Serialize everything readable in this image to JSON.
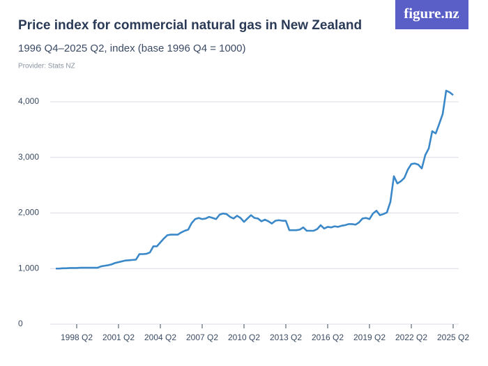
{
  "brand": "figure.nz",
  "chart_data": {
    "type": "line",
    "title": "Price index for commercial natural gas in New Zealand",
    "subtitle": "1996 Q4–2025 Q2, index (base 1996 Q4 = 1000)",
    "provider": "Provider: Stats NZ",
    "color": "#3b88c9",
    "grid": true,
    "ylim": [
      0,
      4200
    ],
    "yticks": [
      0,
      {
        "value": 1000,
        "label": "1,000"
      },
      {
        "value": 2000,
        "label": "2,000"
      },
      {
        "value": 3000,
        "label": "3,000"
      },
      {
        "value": 4000,
        "label": "4,000"
      }
    ],
    "categories": [
      null,
      null,
      null,
      null,
      null,
      null,
      "1998 Q2",
      null,
      null,
      null,
      null,
      null,
      null,
      null,
      null,
      null,
      null,
      null,
      "2001 Q2",
      null,
      null,
      null,
      null,
      null,
      null,
      null,
      null,
      null,
      null,
      null,
      "2004 Q2",
      null,
      null,
      null,
      null,
      null,
      null,
      null,
      null,
      null,
      null,
      null,
      "2007 Q2",
      null,
      null,
      null,
      null,
      null,
      null,
      null,
      null,
      null,
      null,
      null,
      "2010 Q2",
      null,
      null,
      null,
      null,
      null,
      null,
      null,
      null,
      null,
      null,
      null,
      "2013 Q2",
      null,
      null,
      null,
      null,
      null,
      null,
      null,
      null,
      null,
      null,
      null,
      "2016 Q2",
      null,
      null,
      null,
      null,
      null,
      null,
      null,
      null,
      null,
      null,
      null,
      "2019 Q2",
      null,
      null,
      null,
      null,
      null,
      null,
      null,
      null,
      null,
      null,
      null,
      "2022 Q2",
      null,
      null,
      null,
      null,
      null,
      null,
      null,
      null,
      null,
      null,
      null,
      "2025 Q2"
    ],
    "values": [
      1000,
      1000,
      1005,
      1005,
      1010,
      1010,
      1010,
      1015,
      1015,
      1015,
      1015,
      1015,
      1015,
      1040,
      1050,
      1060,
      1075,
      1100,
      1115,
      1130,
      1145,
      1150,
      1155,
      1160,
      1260,
      1260,
      1265,
      1290,
      1400,
      1400,
      1470,
      1540,
      1600,
      1610,
      1610,
      1610,
      1650,
      1680,
      1700,
      1820,
      1890,
      1910,
      1890,
      1900,
      1930,
      1910,
      1890,
      1970,
      1990,
      1980,
      1930,
      1900,
      1950,
      1910,
      1840,
      1900,
      1960,
      1910,
      1900,
      1850,
      1880,
      1850,
      1810,
      1860,
      1870,
      1860,
      1860,
      1690,
      1690,
      1690,
      1700,
      1740,
      1680,
      1680,
      1680,
      1710,
      1780,
      1720,
      1750,
      1740,
      1760,
      1750,
      1770,
      1780,
      1800,
      1800,
      1790,
      1830,
      1900,
      1910,
      1890,
      1990,
      2040,
      1960,
      1980,
      2010,
      2200,
      2660,
      2530,
      2570,
      2630,
      2780,
      2880,
      2890,
      2870,
      2800,
      3040,
      3160,
      3470,
      3430,
      3600,
      3780,
      4200,
      4170,
      4120
    ]
  }
}
